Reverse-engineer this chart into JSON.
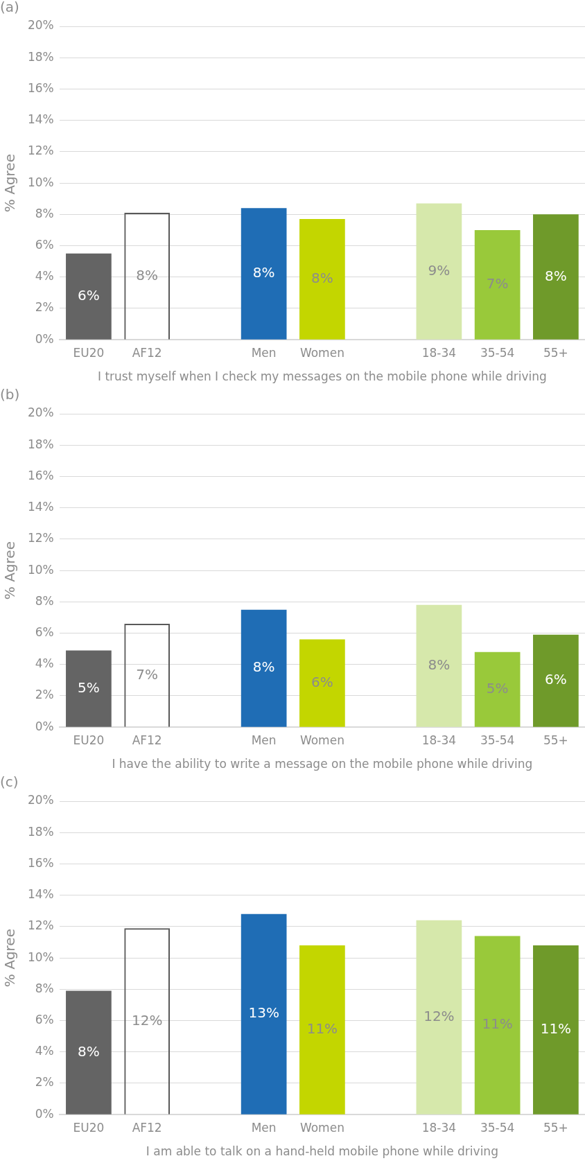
{
  "chart_data": [
    {
      "type": "bar",
      "title": "(a)",
      "xlabel": "I trust myself when I check my messages on the mobile phone while driving",
      "ylabel": "% Agree",
      "categories": [
        "EU20",
        "AF12",
        null,
        "Men",
        "Women",
        null,
        "18-34",
        "35-54",
        "55+"
      ],
      "values": [
        5.5,
        8.1,
        null,
        8.4,
        7.7,
        null,
        8.7,
        7.0,
        8.0
      ],
      "value_labels": [
        "6%",
        "8%",
        null,
        "8%",
        "8%",
        null,
        "9%",
        "7%",
        "8%"
      ],
      "colors": [
        "#646464",
        "#595959",
        "#ffffff",
        "#1f6db5",
        "#c3d600",
        "#ffffff",
        "#d6e8ab",
        "#99c93a",
        "#6f9a2a"
      ],
      "ylim": [
        0,
        20
      ],
      "yticks": [
        {
          "value": 0,
          "label": "0%"
        },
        {
          "value": 2,
          "label": "2%"
        },
        {
          "value": 4,
          "label": "4%"
        },
        {
          "value": 6,
          "label": "6%"
        },
        {
          "value": 8,
          "label": "8%"
        },
        {
          "value": 10,
          "label": "10%"
        },
        {
          "value": 12,
          "label": "12%"
        },
        {
          "value": 14,
          "label": "14%"
        },
        {
          "value": 16,
          "label": "16%"
        },
        {
          "value": 18,
          "label": "18%"
        },
        {
          "value": 20,
          "label": "20%"
        }
      ],
      "grid": "y",
      "legend": false
    },
    {
      "type": "bar",
      "title": "(b)",
      "xlabel": "I have the ability to write a message on the mobile phone while driving",
      "ylabel": "% Agree",
      "categories": [
        "EU20",
        "AF12",
        null,
        "Men",
        "Women",
        null,
        "18-34",
        "35-54",
        "55+"
      ],
      "values": [
        4.9,
        6.6,
        null,
        7.5,
        5.6,
        null,
        7.8,
        4.8,
        5.9
      ],
      "value_labels": [
        "5%",
        "7%",
        null,
        "8%",
        "6%",
        null,
        "8%",
        "5%",
        "6%"
      ],
      "colors": [
        "#646464",
        "#595959",
        "#ffffff",
        "#1f6db5",
        "#c3d600",
        "#ffffff",
        "#d6e8ab",
        "#99c93a",
        "#6f9a2a"
      ],
      "ylim": [
        0,
        20
      ],
      "yticks": [
        {
          "value": 0,
          "label": "0%"
        },
        {
          "value": 2,
          "label": "2%"
        },
        {
          "value": 4,
          "label": "4%"
        },
        {
          "value": 6,
          "label": "6%"
        },
        {
          "value": 8,
          "label": "8%"
        },
        {
          "value": 10,
          "label": "10%"
        },
        {
          "value": 12,
          "label": "12%"
        },
        {
          "value": 14,
          "label": "14%"
        },
        {
          "value": 16,
          "label": "16%"
        },
        {
          "value": 18,
          "label": "18%"
        },
        {
          "value": 20,
          "label": "20%"
        }
      ],
      "grid": "y",
      "legend": false
    },
    {
      "type": "bar",
      "title": "(c)",
      "xlabel": "I am able to talk on a hand-held mobile phone while driving",
      "ylabel": "% Agree",
      "categories": [
        "EU20",
        "AF12",
        null,
        "Men",
        "Women",
        null,
        "18-34",
        "35-54",
        "55+"
      ],
      "values": [
        7.9,
        11.9,
        null,
        12.8,
        10.8,
        null,
        12.4,
        11.4,
        10.8
      ],
      "value_labels": [
        "8%",
        "12%",
        null,
        "13%",
        "11%",
        null,
        "12%",
        "11%",
        "11%"
      ],
      "colors": [
        "#646464",
        "#595959",
        "#ffffff",
        "#1f6db5",
        "#c3d600",
        "#ffffff",
        "#d6e8ab",
        "#99c93a",
        "#6f9a2a"
      ],
      "ylim": [
        0,
        20
      ],
      "yticks": [
        {
          "value": 0,
          "label": "0%"
        },
        {
          "value": 2,
          "label": "2%"
        },
        {
          "value": 4,
          "label": "4%"
        },
        {
          "value": 6,
          "label": "6%"
        },
        {
          "value": 8,
          "label": "8%"
        },
        {
          "value": 10,
          "label": "10%"
        },
        {
          "value": 12,
          "label": "12%"
        },
        {
          "value": 14,
          "label": "14%"
        },
        {
          "value": 16,
          "label": "16%"
        },
        {
          "value": 18,
          "label": "18%"
        },
        {
          "value": 20,
          "label": "20%"
        }
      ],
      "grid": "y",
      "legend": false
    }
  ]
}
